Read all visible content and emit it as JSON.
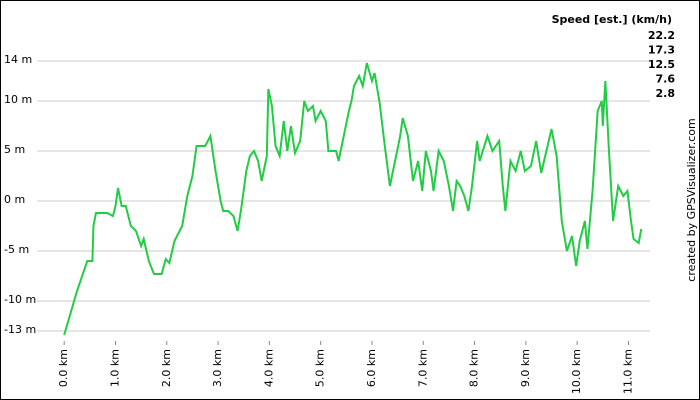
{
  "chart_data": {
    "type": "line",
    "x": [
      0,
      0.25,
      0.45,
      0.55,
      0.57,
      0.62,
      0.84,
      0.95,
      1.0,
      1.05,
      1.12,
      1.2,
      1.3,
      1.4,
      1.5,
      1.55,
      1.65,
      1.75,
      1.9,
      1.98,
      2.05,
      2.15,
      2.3,
      2.4,
      2.5,
      2.58,
      2.75,
      2.85,
      2.95,
      3.05,
      3.1,
      3.2,
      3.3,
      3.38,
      3.45,
      3.55,
      3.62,
      3.7,
      3.78,
      3.85,
      3.95,
      3.98,
      4.05,
      4.12,
      4.2,
      4.28,
      4.35,
      4.42,
      4.5,
      4.6,
      4.68,
      4.75,
      4.85,
      4.9,
      5.0,
      5.1,
      5.15,
      5.3,
      5.35,
      5.45,
      5.55,
      5.6,
      5.65,
      5.75,
      5.82,
      5.9,
      6.0,
      6.05,
      6.15,
      6.25,
      6.35,
      6.45,
      6.55,
      6.6,
      6.7,
      6.8,
      6.9,
      6.98,
      7.05,
      7.15,
      7.2,
      7.3,
      7.4,
      7.5,
      7.58,
      7.65,
      7.72,
      7.8,
      7.88,
      7.95,
      8.05,
      8.1,
      8.25,
      8.35,
      8.48,
      8.55,
      8.6,
      8.7,
      8.8,
      8.9,
      8.98,
      9.1,
      9.2,
      9.3,
      9.4,
      9.5,
      9.6,
      9.7,
      9.8,
      9.9,
      9.98,
      10.05,
      10.15,
      10.2,
      10.3,
      10.4,
      10.48,
      10.5,
      10.55,
      10.62,
      10.7,
      10.8,
      10.85,
      10.9,
      10.98,
      11.05,
      11.1,
      11.2,
      11.25
    ],
    "series": [
      {
        "color": "#22cc44",
        "values": [
          -13.4,
          -9,
          -6,
          -6,
          -2.5,
          -1.2,
          -1.2,
          -1.5,
          -0.5,
          1.3,
          -0.5,
          -0.5,
          -2.5,
          -3,
          -4.5,
          -3.8,
          -6,
          -7.3,
          -7.3,
          -5.8,
          -6.2,
          -4,
          -2.5,
          0.5,
          2.5,
          5.5,
          5.5,
          6.5,
          3,
          0,
          -1,
          -1,
          -1.5,
          -3,
          -0.8,
          3,
          4.5,
          5,
          4,
          2,
          4.5,
          11.2,
          9.5,
          5.5,
          4.5,
          8,
          5,
          7.5,
          4.8,
          6,
          10,
          9,
          9.5,
          8,
          9,
          8,
          5,
          5,
          4,
          6.5,
          9,
          10,
          11.5,
          12.5,
          11.5,
          13.8,
          12,
          12.8,
          9.8,
          5.5,
          1.5,
          4,
          6.5,
          8.3,
          6.5,
          2,
          4,
          1,
          5,
          3,
          1,
          5,
          4,
          1.5,
          -1,
          2,
          1.5,
          0.5,
          -1,
          1.5,
          6,
          4,
          6.5,
          5,
          6,
          1.5,
          -1,
          4,
          3,
          5,
          3,
          3.5,
          6,
          2.8,
          5,
          7.2,
          4.5,
          -2,
          -5,
          -3.5,
          -6.5,
          -4,
          -2,
          -4.8,
          1,
          9,
          10,
          7.5,
          12,
          5,
          -2,
          1.5,
          1,
          0.5,
          1,
          -2,
          -3.8,
          -4.2,
          -2.8
        ]
      }
    ],
    "xlim": [
      -0.53,
      11.42
    ],
    "ylim": [
      -14,
      15.5
    ],
    "xticks": [
      {
        "value": 0,
        "label": "0.0 km"
      },
      {
        "value": 1,
        "label": "1.0 km"
      },
      {
        "value": 2,
        "label": "2.0 km"
      },
      {
        "value": 3,
        "label": "3.0 km"
      },
      {
        "value": 4,
        "label": "4.0 km"
      },
      {
        "value": 5,
        "label": "5.0 km"
      },
      {
        "value": 6,
        "label": "6.0 km"
      },
      {
        "value": 7,
        "label": "7.0 km"
      },
      {
        "value": 8,
        "label": "8.0 km"
      },
      {
        "value": 9,
        "label": "9.0 km"
      },
      {
        "value": 10,
        "label": "10.0 km"
      },
      {
        "value": 11,
        "label": "11.0 km"
      }
    ],
    "yticks": [
      {
        "value": 14,
        "label": "14 m"
      },
      {
        "value": 10,
        "label": "10 m"
      },
      {
        "value": 5,
        "label": "5 m"
      },
      {
        "value": 0,
        "label": "0 m"
      },
      {
        "value": -5,
        "label": "-5 m"
      },
      {
        "value": -10,
        "label": "-10 m"
      },
      {
        "value": -13,
        "label": "-13 m"
      }
    ],
    "grid": true,
    "speed_legend": {
      "title": "Speed [est.] (km/h)",
      "values": [
        22.2,
        17.3,
        12.5,
        7.6,
        2.8
      ],
      "colors": [
        "#9900cc",
        "#0066dd",
        "#22cc66",
        "#aacc00",
        "#dd0000"
      ]
    },
    "credit": "created by GPSVisualizer.com"
  }
}
